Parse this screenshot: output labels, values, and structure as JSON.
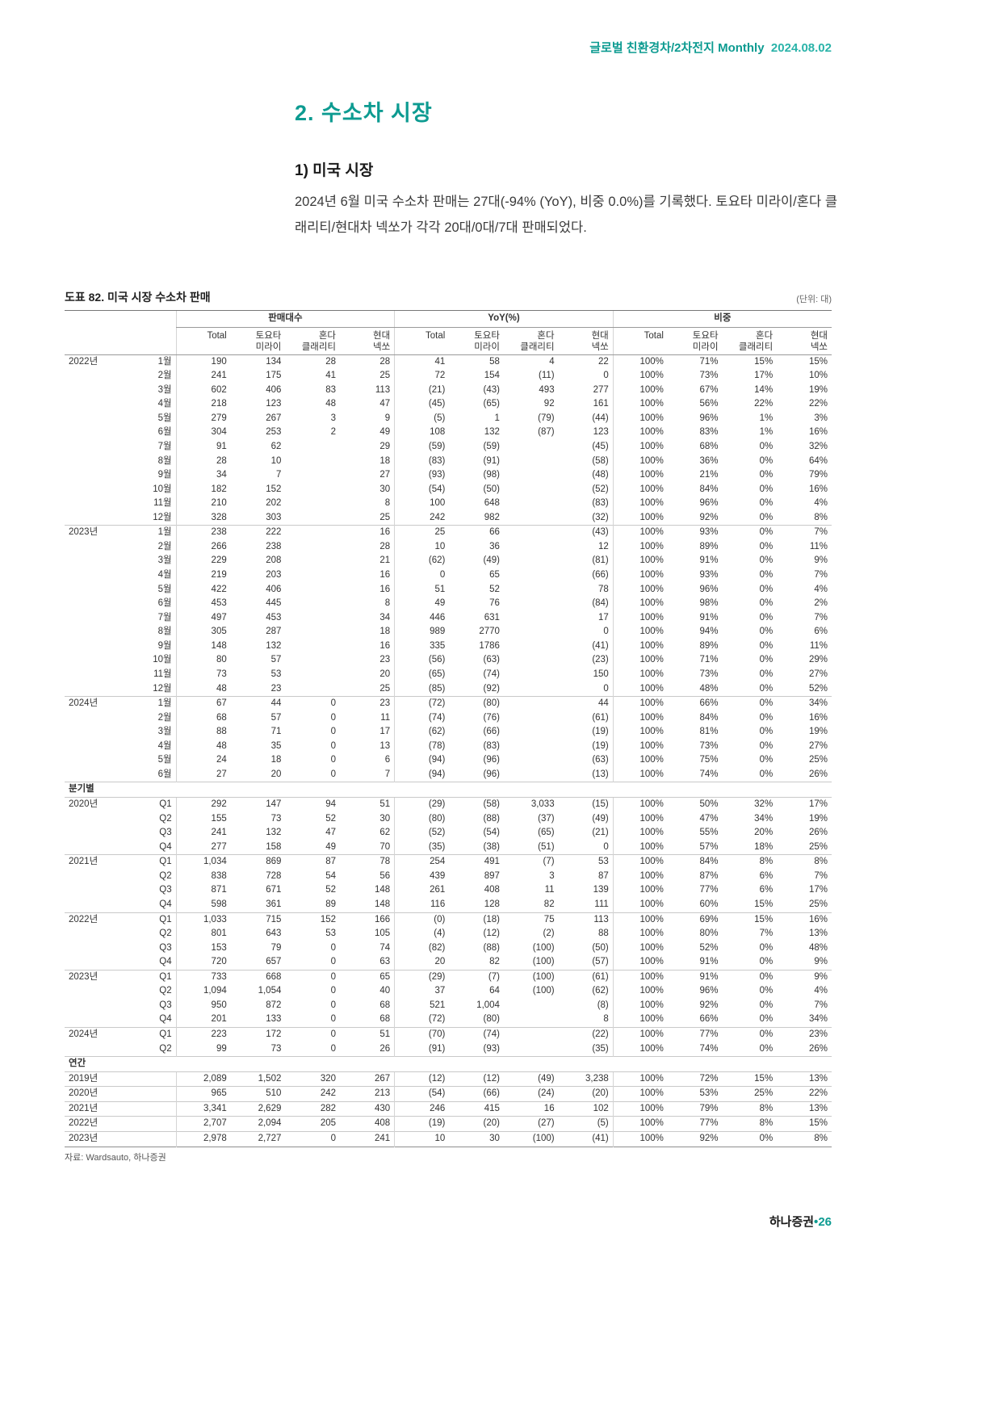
{
  "header": {
    "topline_label": "글로벌 친환경차/2차전지 Monthly",
    "topline_date": "2024.08.02"
  },
  "title": "2. 수소차 시장",
  "subtitle": "1) 미국 시장",
  "paragraph": "2024년 6월 미국 수소차 판매는 27대(-94% (YoY), 비중 0.0%)를 기록했다. 토요타 미라이/혼다 클래리티/현대차 넥쏘가 각각 20대/0대/7대 판매되었다.",
  "table": {
    "caption": "도표 82. 미국 시장 수소차 판매",
    "unit": "(단위: 대)",
    "groups": [
      "판매대수",
      "YoY(%)",
      "비중"
    ],
    "cols": [
      [
        "Total",
        ""
      ],
      [
        "토요타",
        "미라이"
      ],
      [
        "혼다",
        "클래리티"
      ],
      [
        "현대",
        "넥쏘"
      ]
    ],
    "source": "자료: Wardsauto, 하나증권",
    "rows": [
      {
        "year": "2022년",
        "period": "1월",
        "v": [
          "190",
          "134",
          "28",
          "28",
          "41",
          "58",
          "4",
          "22",
          "100%",
          "71%",
          "15%",
          "15%"
        ]
      },
      {
        "period": "2월",
        "v": [
          "241",
          "175",
          "41",
          "25",
          "72",
          "154",
          "(11)",
          "0",
          "100%",
          "73%",
          "17%",
          "10%"
        ]
      },
      {
        "period": "3월",
        "v": [
          "602",
          "406",
          "83",
          "113",
          "(21)",
          "(43)",
          "493",
          "277",
          "100%",
          "67%",
          "14%",
          "19%"
        ]
      },
      {
        "period": "4월",
        "v": [
          "218",
          "123",
          "48",
          "47",
          "(45)",
          "(65)",
          "92",
          "161",
          "100%",
          "56%",
          "22%",
          "22%"
        ]
      },
      {
        "period": "5월",
        "v": [
          "279",
          "267",
          "3",
          "9",
          "(5)",
          "1",
          "(79)",
          "(44)",
          "100%",
          "96%",
          "1%",
          "3%"
        ]
      },
      {
        "period": "6월",
        "v": [
          "304",
          "253",
          "2",
          "49",
          "108",
          "132",
          "(87)",
          "123",
          "100%",
          "83%",
          "1%",
          "16%"
        ]
      },
      {
        "period": "7월",
        "v": [
          "91",
          "62",
          "",
          "29",
          "(59)",
          "(59)",
          "",
          "(45)",
          "100%",
          "68%",
          "0%",
          "32%"
        ]
      },
      {
        "period": "8월",
        "v": [
          "28",
          "10",
          "",
          "18",
          "(83)",
          "(91)",
          "",
          "(58)",
          "100%",
          "36%",
          "0%",
          "64%"
        ]
      },
      {
        "period": "9월",
        "v": [
          "34",
          "7",
          "",
          "27",
          "(93)",
          "(98)",
          "",
          "(48)",
          "100%",
          "21%",
          "0%",
          "79%"
        ]
      },
      {
        "period": "10월",
        "v": [
          "182",
          "152",
          "",
          "30",
          "(54)",
          "(50)",
          "",
          "(52)",
          "100%",
          "84%",
          "0%",
          "16%"
        ]
      },
      {
        "period": "11월",
        "v": [
          "210",
          "202",
          "",
          "8",
          "100",
          "648",
          "",
          "(83)",
          "100%",
          "96%",
          "0%",
          "4%"
        ]
      },
      {
        "period": "12월",
        "v": [
          "328",
          "303",
          "",
          "25",
          "242",
          "982",
          "",
          "(32)",
          "100%",
          "92%",
          "0%",
          "8%"
        ]
      },
      {
        "year": "2023년",
        "period": "1월",
        "rule": true,
        "v": [
          "238",
          "222",
          "",
          "16",
          "25",
          "66",
          "",
          "(43)",
          "100%",
          "93%",
          "0%",
          "7%"
        ]
      },
      {
        "period": "2월",
        "v": [
          "266",
          "238",
          "",
          "28",
          "10",
          "36",
          "",
          "12",
          "100%",
          "89%",
          "0%",
          "11%"
        ]
      },
      {
        "period": "3월",
        "v": [
          "229",
          "208",
          "",
          "21",
          "(62)",
          "(49)",
          "",
          "(81)",
          "100%",
          "91%",
          "0%",
          "9%"
        ]
      },
      {
        "period": "4월",
        "v": [
          "219",
          "203",
          "",
          "16",
          "0",
          "65",
          "",
          "(66)",
          "100%",
          "93%",
          "0%",
          "7%"
        ]
      },
      {
        "period": "5월",
        "v": [
          "422",
          "406",
          "",
          "16",
          "51",
          "52",
          "",
          "78",
          "100%",
          "96%",
          "0%",
          "4%"
        ]
      },
      {
        "period": "6월",
        "v": [
          "453",
          "445",
          "",
          "8",
          "49",
          "76",
          "",
          "(84)",
          "100%",
          "98%",
          "0%",
          "2%"
        ]
      },
      {
        "period": "7월",
        "v": [
          "497",
          "453",
          "",
          "34",
          "446",
          "631",
          "",
          "17",
          "100%",
          "91%",
          "0%",
          "7%"
        ]
      },
      {
        "period": "8월",
        "v": [
          "305",
          "287",
          "",
          "18",
          "989",
          "2770",
          "",
          "0",
          "100%",
          "94%",
          "0%",
          "6%"
        ]
      },
      {
        "period": "9월",
        "v": [
          "148",
          "132",
          "",
          "16",
          "335",
          "1786",
          "",
          "(41)",
          "100%",
          "89%",
          "0%",
          "11%"
        ]
      },
      {
        "period": "10월",
        "v": [
          "80",
          "57",
          "",
          "23",
          "(56)",
          "(63)",
          "",
          "(23)",
          "100%",
          "71%",
          "0%",
          "29%"
        ]
      },
      {
        "period": "11월",
        "v": [
          "73",
          "53",
          "",
          "20",
          "(65)",
          "(74)",
          "",
          "150",
          "100%",
          "73%",
          "0%",
          "27%"
        ]
      },
      {
        "period": "12월",
        "v": [
          "48",
          "23",
          "",
          "25",
          "(85)",
          "(92)",
          "",
          "0",
          "100%",
          "48%",
          "0%",
          "52%"
        ]
      },
      {
        "year": "2024년",
        "period": "1월",
        "rule": true,
        "v": [
          "67",
          "44",
          "0",
          "23",
          "(72)",
          "(80)",
          "",
          "44",
          "100%",
          "66%",
          "0%",
          "34%"
        ]
      },
      {
        "period": "2월",
        "v": [
          "68",
          "57",
          "0",
          "11",
          "(74)",
          "(76)",
          "",
          "(61)",
          "100%",
          "84%",
          "0%",
          "16%"
        ]
      },
      {
        "period": "3월",
        "v": [
          "88",
          "71",
          "0",
          "17",
          "(62)",
          "(66)",
          "",
          "(19)",
          "100%",
          "81%",
          "0%",
          "19%"
        ]
      },
      {
        "period": "4월",
        "v": [
          "48",
          "35",
          "0",
          "13",
          "(78)",
          "(83)",
          "",
          "(19)",
          "100%",
          "73%",
          "0%",
          "27%"
        ]
      },
      {
        "period": "5월",
        "v": [
          "24",
          "18",
          "0",
          "6",
          "(94)",
          "(96)",
          "",
          "(63)",
          "100%",
          "75%",
          "0%",
          "25%"
        ]
      },
      {
        "period": "6월",
        "v": [
          "27",
          "20",
          "0",
          "7",
          "(94)",
          "(96)",
          "",
          "(13)",
          "100%",
          "74%",
          "0%",
          "26%"
        ]
      },
      {
        "section": "분기별"
      },
      {
        "year": "2020년",
        "period": "Q1",
        "v": [
          "292",
          "147",
          "94",
          "51",
          "(29)",
          "(58)",
          "3,033",
          "(15)",
          "100%",
          "50%",
          "32%",
          "17%"
        ]
      },
      {
        "period": "Q2",
        "v": [
          "155",
          "73",
          "52",
          "30",
          "(80)",
          "(88)",
          "(37)",
          "(49)",
          "100%",
          "47%",
          "34%",
          "19%"
        ]
      },
      {
        "period": "Q3",
        "v": [
          "241",
          "132",
          "47",
          "62",
          "(52)",
          "(54)",
          "(65)",
          "(21)",
          "100%",
          "55%",
          "20%",
          "26%"
        ]
      },
      {
        "period": "Q4",
        "v": [
          "277",
          "158",
          "49",
          "70",
          "(35)",
          "(38)",
          "(51)",
          "0",
          "100%",
          "57%",
          "18%",
          "25%"
        ]
      },
      {
        "year": "2021년",
        "period": "Q1",
        "rule": true,
        "v": [
          "1,034",
          "869",
          "87",
          "78",
          "254",
          "491",
          "(7)",
          "53",
          "100%",
          "84%",
          "8%",
          "8%"
        ]
      },
      {
        "period": "Q2",
        "v": [
          "838",
          "728",
          "54",
          "56",
          "439",
          "897",
          "3",
          "87",
          "100%",
          "87%",
          "6%",
          "7%"
        ]
      },
      {
        "period": "Q3",
        "v": [
          "871",
          "671",
          "52",
          "148",
          "261",
          "408",
          "11",
          "139",
          "100%",
          "77%",
          "6%",
          "17%"
        ]
      },
      {
        "period": "Q4",
        "v": [
          "598",
          "361",
          "89",
          "148",
          "116",
          "128",
          "82",
          "111",
          "100%",
          "60%",
          "15%",
          "25%"
        ]
      },
      {
        "year": "2022년",
        "period": "Q1",
        "rule": true,
        "v": [
          "1,033",
          "715",
          "152",
          "166",
          "(0)",
          "(18)",
          "75",
          "113",
          "100%",
          "69%",
          "15%",
          "16%"
        ]
      },
      {
        "period": "Q2",
        "v": [
          "801",
          "643",
          "53",
          "105",
          "(4)",
          "(12)",
          "(2)",
          "88",
          "100%",
          "80%",
          "7%",
          "13%"
        ]
      },
      {
        "period": "Q3",
        "v": [
          "153",
          "79",
          "0",
          "74",
          "(82)",
          "(88)",
          "(100)",
          "(50)",
          "100%",
          "52%",
          "0%",
          "48%"
        ]
      },
      {
        "period": "Q4",
        "v": [
          "720",
          "657",
          "0",
          "63",
          "20",
          "82",
          "(100)",
          "(57)",
          "100%",
          "91%",
          "0%",
          "9%"
        ]
      },
      {
        "year": "2023년",
        "period": "Q1",
        "rule": true,
        "v": [
          "733",
          "668",
          "0",
          "65",
          "(29)",
          "(7)",
          "(100)",
          "(61)",
          "100%",
          "91%",
          "0%",
          "9%"
        ]
      },
      {
        "period": "Q2",
        "v": [
          "1,094",
          "1,054",
          "0",
          "40",
          "37",
          "64",
          "(100)",
          "(62)",
          "100%",
          "96%",
          "0%",
          "4%"
        ]
      },
      {
        "period": "Q3",
        "v": [
          "950",
          "872",
          "0",
          "68",
          "521",
          "1,004",
          "",
          "(8)",
          "100%",
          "92%",
          "0%",
          "7%"
        ]
      },
      {
        "period": "Q4",
        "v": [
          "201",
          "133",
          "0",
          "68",
          "(72)",
          "(80)",
          "",
          "8",
          "100%",
          "66%",
          "0%",
          "34%"
        ]
      },
      {
        "year": "2024년",
        "period": "Q1",
        "rule": true,
        "v": [
          "223",
          "172",
          "0",
          "51",
          "(70)",
          "(74)",
          "",
          "(22)",
          "100%",
          "77%",
          "0%",
          "23%"
        ]
      },
      {
        "period": "Q2",
        "v": [
          "99",
          "73",
          "0",
          "26",
          "(91)",
          "(93)",
          "",
          "(35)",
          "100%",
          "74%",
          "0%",
          "26%"
        ]
      },
      {
        "section": "연간"
      },
      {
        "year": "2019년",
        "period": "",
        "v": [
          "2,089",
          "1,502",
          "320",
          "267",
          "(12)",
          "(12)",
          "(49)",
          "3,238",
          "100%",
          "72%",
          "15%",
          "13%"
        ]
      },
      {
        "year": "2020년",
        "period": "",
        "rule": true,
        "v": [
          "965",
          "510",
          "242",
          "213",
          "(54)",
          "(66)",
          "(24)",
          "(20)",
          "100%",
          "53%",
          "25%",
          "22%"
        ]
      },
      {
        "year": "2021년",
        "period": "",
        "rule": true,
        "v": [
          "3,341",
          "2,629",
          "282",
          "430",
          "246",
          "415",
          "16",
          "102",
          "100%",
          "79%",
          "8%",
          "13%"
        ]
      },
      {
        "year": "2022년",
        "period": "",
        "rule": true,
        "v": [
          "2,707",
          "2,094",
          "205",
          "408",
          "(19)",
          "(20)",
          "(27)",
          "(5)",
          "100%",
          "77%",
          "8%",
          "15%"
        ]
      },
      {
        "year": "2023년",
        "period": "",
        "rule": true,
        "v": [
          "2,978",
          "2,727",
          "0",
          "241",
          "10",
          "30",
          "(100)",
          "(41)",
          "100%",
          "92%",
          "0%",
          "8%"
        ]
      }
    ]
  },
  "footer": {
    "brand": "하나증권",
    "separator": "•",
    "page": "26"
  }
}
